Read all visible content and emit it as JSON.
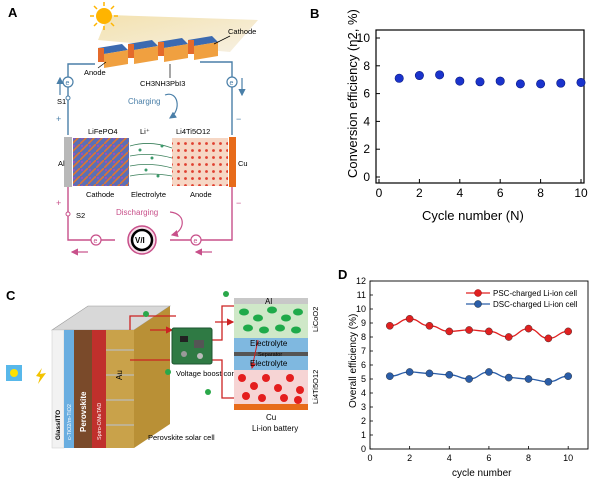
{
  "panels": {
    "a": {
      "letter": "A",
      "labels": {
        "cathode_top": "Cathode",
        "anode_top": "Anode",
        "perovskite": "CH3NH3PbI3",
        "s1": "S1",
        "s2": "S2",
        "charging": "Charging",
        "discharging": "Discharging",
        "li_ion": "Li⁺",
        "lifepo4": "LiFePO4",
        "lto": "Li4Ti5O12",
        "al": "Al",
        "cu": "Cu",
        "cathode_bottom": "Cathode",
        "electrolyte": "Electrolyte",
        "anode_bottom": "Anode",
        "e": "e",
        "vi": "V/I",
        "plus": "+",
        "minus": "−"
      },
      "colors": {
        "circuit_blue": "#4a7fa8",
        "circuit_pink": "#c8508a",
        "cathode_blue": "#3a5aa0",
        "anode_orange": "#e98a4a"
      }
    },
    "b": {
      "letter": "B",
      "chart_data": {
        "type": "scatter",
        "xlabel": "Cycle number (N)",
        "ylabel": "Conversion efficiency (η2, %)",
        "x": [
          1,
          2,
          3,
          4,
          5,
          6,
          7,
          8,
          9,
          10
        ],
        "y": [
          7.1,
          7.3,
          7.35,
          6.9,
          6.85,
          6.9,
          6.7,
          6.7,
          6.75,
          6.8
        ],
        "xlim": [
          0,
          10
        ],
        "ylim": [
          0,
          10
        ],
        "xticks": [
          "0",
          "2",
          "4",
          "6",
          "8",
          "10"
        ],
        "yticks": [
          "0",
          "2",
          "4",
          "6",
          "8",
          "10"
        ],
        "color": "#1a33cc"
      }
    },
    "c": {
      "letter": "C",
      "labels": {
        "glass_ito": "Glass/ITO",
        "tio2": "c-TiO2/m-TiO2",
        "perovskite": "Perovskite",
        "spiro": "Spiro-OMeTAD",
        "au": "Au",
        "perovskite_cell": "Perovskite solar cell",
        "boost": "Voltage boost converter",
        "al": "Al",
        "licoo2": "LiCoO2",
        "electrolyte1": "Electrolyte",
        "separator": "Separator",
        "electrolyte2": "Electrolyte",
        "lto": "Li4Ti5O12",
        "cu": "Cu",
        "battery": "Li-ion battery"
      }
    },
    "d": {
      "letter": "D",
      "chart_data": {
        "type": "line",
        "xlabel": "cycle number",
        "ylabel": "Overall efficiency (%)",
        "x": [
          1,
          2,
          3,
          4,
          5,
          6,
          7,
          8,
          9,
          10
        ],
        "series": [
          {
            "name": "PSC-charged Li-ion cell",
            "color": "#e02020",
            "values": [
              8.8,
              9.3,
              8.8,
              8.4,
              8.5,
              8.4,
              8.0,
              8.6,
              7.9,
              8.4
            ]
          },
          {
            "name": "DSC-charged Li-ion cell",
            "color": "#2a5da8",
            "values": [
              5.2,
              5.5,
              5.4,
              5.3,
              5.0,
              5.5,
              5.1,
              5.0,
              4.8,
              5.2
            ]
          }
        ],
        "xlim": [
          0,
          11
        ],
        "ylim": [
          0,
          12
        ],
        "xticks": [
          "0",
          "2",
          "4",
          "6",
          "8",
          "10"
        ],
        "yticks": [
          "0",
          "1",
          "2",
          "3",
          "4",
          "5",
          "6",
          "7",
          "8",
          "9",
          "10",
          "11",
          "12"
        ],
        "legend_position": "top-right"
      }
    }
  }
}
